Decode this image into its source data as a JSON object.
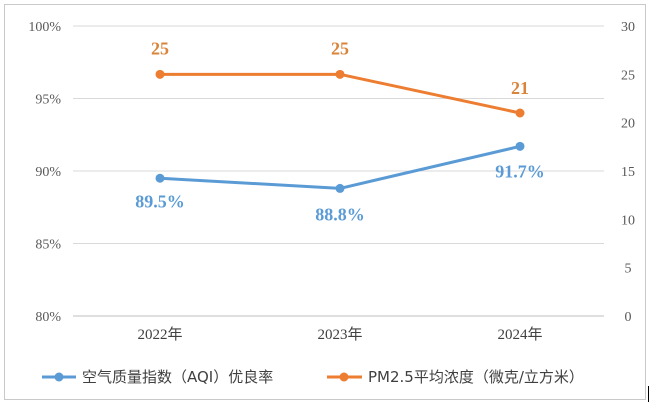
{
  "chart_data": {
    "type": "line",
    "categories": [
      "2022年",
      "2023年",
      "2024年"
    ],
    "series": [
      {
        "name": "空气质量指数（AQI）优良率",
        "axis": "left",
        "values": [
          89.5,
          88.8,
          91.7
        ],
        "labels": [
          "89.5%",
          "88.8%",
          "91.7%"
        ],
        "color": "#5b9bd5"
      },
      {
        "name": "PM2.5平均浓度（微克/立方米）",
        "axis": "right",
        "values": [
          25,
          25,
          21
        ],
        "labels": [
          "25",
          "25",
          "21"
        ],
        "color": "#ed7d31"
      }
    ],
    "y_left": {
      "range": [
        80,
        100
      ],
      "ticks": [
        "80%",
        "85%",
        "90%",
        "95%",
        "100%"
      ]
    },
    "y_right": {
      "range": [
        0,
        30
      ],
      "ticks": [
        "0",
        "5",
        "10",
        "15",
        "20",
        "25",
        "30"
      ]
    },
    "legend_position": "bottom",
    "grid": true
  }
}
